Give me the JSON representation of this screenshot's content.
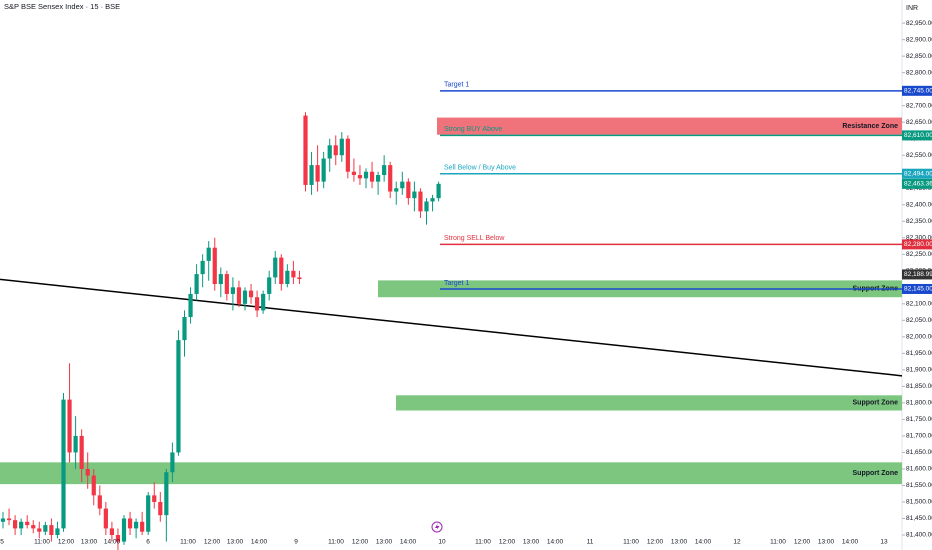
{
  "chart_data": {
    "type": "candlestick",
    "title": "S&P BSE Sensex Index · 15 · BSE",
    "currency": "INR",
    "up_color": "#089981",
    "down_color": "#f23645",
    "open": [
      81440,
      81450,
      81445,
      81420,
      81440,
      81430,
      81420,
      81410,
      81430,
      81400,
      81420,
      81810,
      81650,
      81700,
      81600,
      81580,
      81520,
      81480,
      81420,
      81400,
      81380,
      81450,
      81420,
      81440,
      81410,
      81520,
      81500,
      81460,
      81590,
      81650,
      81990,
      82060,
      82130,
      82190,
      82230,
      82270,
      82160,
      82190,
      82130,
      82150,
      82100,
      82140,
      82120,
      82080,
      82130,
      82180,
      82240,
      82160,
      82200,
      82180,
      82670,
      82460,
      82520,
      82470,
      82540,
      82580,
      82550,
      82600,
      82500,
      82490,
      82480,
      82500,
      82470,
      82490,
      82520,
      82440,
      82450,
      82470,
      82420,
      82440,
      82380,
      82410,
      82420
    ],
    "high": [
      81470,
      81480,
      81460,
      81450,
      81460,
      81445,
      81440,
      81440,
      81450,
      81440,
      81830,
      81920,
      81760,
      81720,
      81650,
      81600,
      81550,
      81500,
      81440,
      81420,
      81460,
      81470,
      81450,
      81470,
      81530,
      81560,
      81530,
      81600,
      81680,
      82020,
      82080,
      82150,
      82220,
      82250,
      82290,
      82300,
      82210,
      82200,
      82180,
      82170,
      82150,
      82160,
      82140,
      82140,
      82200,
      82260,
      82250,
      82220,
      82230,
      82200,
      82680,
      82560,
      82580,
      82560,
      82600,
      82610,
      82620,
      82610,
      82540,
      82520,
      82510,
      82530,
      82500,
      82550,
      82530,
      82470,
      82500,
      82480,
      82470,
      82450,
      82420,
      82430,
      82470
    ],
    "low": [
      81420,
      81430,
      81400,
      81400,
      81420,
      81405,
      81390,
      81400,
      81380,
      81390,
      81410,
      81620,
      81600,
      81560,
      81540,
      81490,
      81460,
      81400,
      81380,
      81350,
      81370,
      81400,
      81390,
      81400,
      81400,
      81480,
      81440,
      81380,
      81560,
      81640,
      81940,
      82040,
      82110,
      82150,
      82170,
      82140,
      82120,
      82110,
      82080,
      82090,
      82080,
      82100,
      82060,
      82070,
      82110,
      82160,
      82140,
      82150,
      82160,
      82160,
      82440,
      82430,
      82440,
      82450,
      82500,
      82520,
      82530,
      82480,
      82470,
      82460,
      82450,
      82450,
      82430,
      82470,
      82420,
      82400,
      82430,
      82400,
      82380,
      82360,
      82340,
      82380,
      82410
    ],
    "close": [
      81450,
      81445,
      81420,
      81440,
      81430,
      81420,
      81410,
      81430,
      81400,
      81420,
      81810,
      81650,
      81700,
      81600,
      81580,
      81520,
      81480,
      81420,
      81400,
      81380,
      81450,
      81420,
      81440,
      81410,
      81520,
      81500,
      81460,
      81590,
      81650,
      81990,
      82060,
      82130,
      82190,
      82230,
      82270,
      82160,
      82190,
      82130,
      82150,
      82100,
      82140,
      82120,
      82080,
      82130,
      82180,
      82240,
      82160,
      82200,
      82180,
      82175,
      82460,
      82520,
      82470,
      82540,
      82580,
      82550,
      82600,
      82500,
      82490,
      82480,
      82500,
      82470,
      82490,
      82520,
      82440,
      82450,
      82470,
      82420,
      82440,
      82380,
      82410,
      82420,
      82463.36
    ],
    "ylim": [
      81400,
      83020
    ],
    "yticks": [
      {
        "value": 81400,
        "label": "81,400.00"
      },
      {
        "value": 81450,
        "label": "81,450.00"
      },
      {
        "value": 81500,
        "label": "81,500.00"
      },
      {
        "value": 81550,
        "label": "81,550.00"
      },
      {
        "value": 81600,
        "label": "81,600.00"
      },
      {
        "value": 81650,
        "label": "81,650.00"
      },
      {
        "value": 81700,
        "label": "81,700.00"
      },
      {
        "value": 81750,
        "label": "81,750.00"
      },
      {
        "value": 81800,
        "label": "81,800.00"
      },
      {
        "value": 81850,
        "label": "81,850.00"
      },
      {
        "value": 81900,
        "label": "81,900.00"
      },
      {
        "value": 81950,
        "label": "81,950.00"
      },
      {
        "value": 82000,
        "label": "82,000.00"
      },
      {
        "value": 82050,
        "label": "82,050.00"
      },
      {
        "value": 82100,
        "label": "82,100.00"
      },
      {
        "value": 82150,
        "label": "82,150.00"
      },
      {
        "value": 82200,
        "label": "82,200.00"
      },
      {
        "value": 82250,
        "label": "82,250.00"
      },
      {
        "value": 82300,
        "label": "82,300.00"
      },
      {
        "value": 82350,
        "label": "82,350.00"
      },
      {
        "value": 82400,
        "label": "82,400.00"
      },
      {
        "value": 82450,
        "label": "82,450.00"
      },
      {
        "value": 82500,
        "label": "82,500.00"
      },
      {
        "value": 82550,
        "label": "82,550.00"
      },
      {
        "value": 82600,
        "label": "82,600.00"
      },
      {
        "value": 82650,
        "label": "82,650.00"
      },
      {
        "value": 82700,
        "label": "82,700.00"
      },
      {
        "value": 82750,
        "label": "82,750.00"
      },
      {
        "value": 82800,
        "label": "82,800.00"
      },
      {
        "value": 82850,
        "label": "82,850.00"
      },
      {
        "value": 82900,
        "label": "82,900.00"
      },
      {
        "value": 82950,
        "label": "82,950.00"
      }
    ],
    "xtick_labels": [
      "5",
      "11:00",
      "12:00",
      "13:00",
      "14:00",
      "6",
      "11:00",
      "12:00",
      "13:00",
      "14:00",
      "9",
      "11:00",
      "12:00",
      "13:00",
      "14:00",
      "10",
      "11:00",
      "12:00",
      "13:00",
      "14:00",
      "11",
      "11:00",
      "12:00",
      "13:00",
      "14:00",
      "12",
      "11:00",
      "12:00",
      "13:00",
      "14:00",
      "13"
    ],
    "levels": [
      {
        "name": "Target 1",
        "value": 82745,
        "label": "82,745.00",
        "color": "#1848cc"
      },
      {
        "name": "Strong BUY Above",
        "value": 82610,
        "label": "82,610.00",
        "color": "#089981"
      },
      {
        "name": "Sell Below / Buy Above",
        "value": 82494,
        "label": "82,494.00",
        "color": "#1aa6bf"
      },
      {
        "name": "Strong SELL Below",
        "value": 82280,
        "label": "82,280.00",
        "color": "#e0303f"
      },
      {
        "name": "Target 1",
        "value": 82145,
        "label": "82,145.00",
        "color": "#1848cc"
      }
    ],
    "price_labels": [
      {
        "value": 82463.36,
        "label": "82,463.36",
        "color": "#089981"
      },
      {
        "value": 82188.99,
        "label": "82,188.99",
        "color": "#333333"
      }
    ],
    "zones": [
      {
        "name": "Resistance Zone",
        "top": 82664,
        "bottom": 82612,
        "color": "#f0737c"
      },
      {
        "name": "Support Zone",
        "top": 82171,
        "bottom": 82120,
        "color": "#7dc680"
      },
      {
        "name": "Support Zone",
        "top": 81823,
        "bottom": 81777,
        "color": "#7dc680"
      },
      {
        "name": "Support Zone",
        "top": 81620,
        "bottom": 81554,
        "color": "#7dc680"
      }
    ],
    "trendline": {
      "start": 82174,
      "end": 81882,
      "color": "#000000"
    }
  }
}
